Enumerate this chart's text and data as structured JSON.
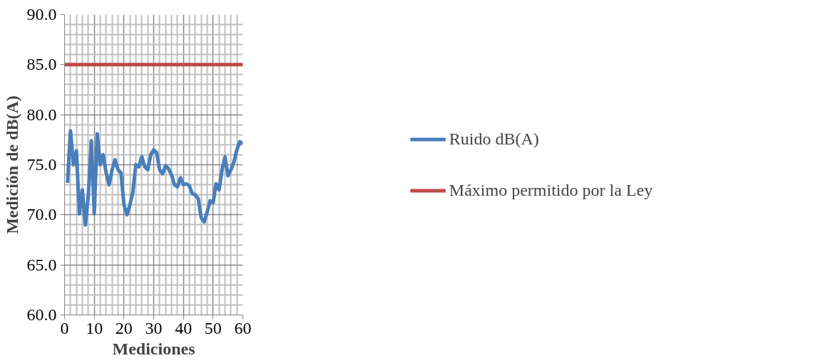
{
  "chart_data": {
    "type": "line",
    "xlabel": "Mediciones",
    "ylabel": "Medición de dB(A)",
    "x": [
      1,
      2,
      3,
      4,
      5,
      6,
      7,
      8,
      9,
      10,
      11,
      12,
      13,
      14,
      15,
      16,
      17,
      18,
      19,
      20,
      21,
      22,
      23,
      24,
      25,
      26,
      27,
      28,
      29,
      30,
      31,
      32,
      33,
      34,
      35,
      36,
      37,
      38,
      39,
      40,
      41,
      42,
      43,
      44,
      45,
      46,
      47,
      48,
      49,
      50,
      51,
      52,
      53,
      54,
      55,
      56,
      57,
      58,
      59,
      60
    ],
    "series": [
      {
        "name": "Ruido dB(A)",
        "color": "#4a7ebb",
        "values": [
          73.2,
          78.4,
          75.0,
          76.4,
          70.1,
          72.5,
          69.0,
          72.0,
          77.4,
          70.1,
          78.1,
          75.0,
          76.0,
          74.2,
          73.0,
          74.5,
          75.5,
          74.5,
          74.2,
          71.0,
          70.0,
          71.0,
          72.3,
          75.0,
          74.8,
          75.8,
          74.8,
          74.5,
          76.0,
          76.5,
          76.2,
          74.5,
          74.1,
          74.9,
          74.6,
          74.0,
          73.0,
          72.8,
          73.7,
          73.0,
          73.1,
          72.9,
          72.1,
          72.0,
          71.6,
          69.7,
          69.3,
          70.3,
          71.4,
          71.2,
          73.1,
          72.5,
          74.5,
          75.8,
          73.9,
          74.5,
          75.3,
          76.5,
          77.3,
          77.1
        ]
      },
      {
        "name": "Máximo permitido por la Ley",
        "color": "#be4b48",
        "x": [
          0,
          60
        ],
        "values": [
          85,
          85
        ]
      }
    ],
    "xlim": [
      0,
      60
    ],
    "xticks": [
      0,
      10,
      20,
      30,
      40,
      50,
      60
    ],
    "ylim": [
      60,
      90
    ],
    "yticks": [
      {
        "value": 60,
        "label": "60.0"
      },
      {
        "value": 65,
        "label": "65.0"
      },
      {
        "value": 70,
        "label": "70.0"
      },
      {
        "value": 75,
        "label": "75.0"
      },
      {
        "value": 80,
        "label": "80.0"
      },
      {
        "value": 85,
        "label": "85.0"
      },
      {
        "value": 90,
        "label": "90.0"
      }
    ],
    "grid": true,
    "legend": "right",
    "marker": "none",
    "line_style": "solid"
  }
}
